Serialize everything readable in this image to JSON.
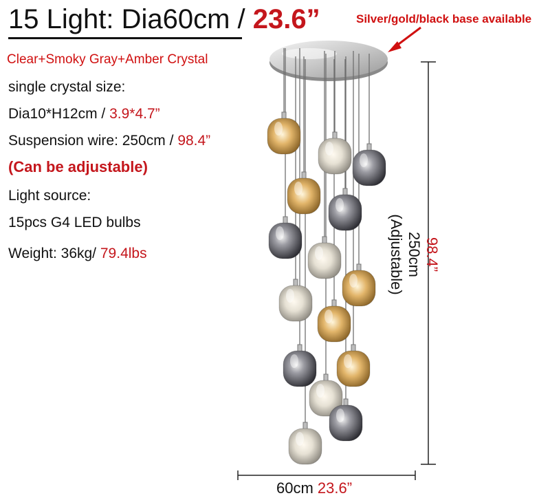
{
  "title": {
    "main": "15 Light: Dia60cm",
    "sep": " / ",
    "imperial": "23.6”"
  },
  "base_note": "Silver/gold/black base available",
  "crystal_mix": "Clear+Smoky Gray+Amber Crystal",
  "specs": {
    "crystal_size_label": "single crystal size:",
    "crystal_size_metric": "Dia10*H12cm",
    "crystal_size_sep": " / ",
    "crystal_size_imperial": "3.9*4.7”",
    "wire_label": "Suspension wire: 250cm",
    "wire_sep": " / ",
    "wire_imperial": "98.4”",
    "adjustable": "(Can be adjustable)",
    "light_source_label": "Light source:",
    "bulbs": "15pcs G4 LED bulbs",
    "weight_label": "Weight: 36kg/",
    "weight_imperial": "79.4lbs"
  },
  "dimensions": {
    "height_imperial": "98.4”",
    "height_metric": "250cm",
    "height_note": "(Adjustable)",
    "width_metric": "60cm",
    "width_imperial": "23.6”"
  },
  "colors": {
    "accent_red": "#c4161c",
    "amber": "#c99a4e",
    "smoky": "#6b6b72",
    "clear": "#d8d6cf"
  },
  "pendants": [
    {
      "tone": "amber"
    },
    {
      "tone": "clear"
    },
    {
      "tone": "smoky"
    },
    {
      "tone": "amber"
    },
    {
      "tone": "smoky"
    },
    {
      "tone": "smoky"
    },
    {
      "tone": "clear"
    },
    {
      "tone": "amber"
    },
    {
      "tone": "clear"
    },
    {
      "tone": "amber"
    },
    {
      "tone": "smoky"
    },
    {
      "tone": "amber"
    },
    {
      "tone": "clear"
    },
    {
      "tone": "smoky"
    },
    {
      "tone": "clear"
    }
  ]
}
